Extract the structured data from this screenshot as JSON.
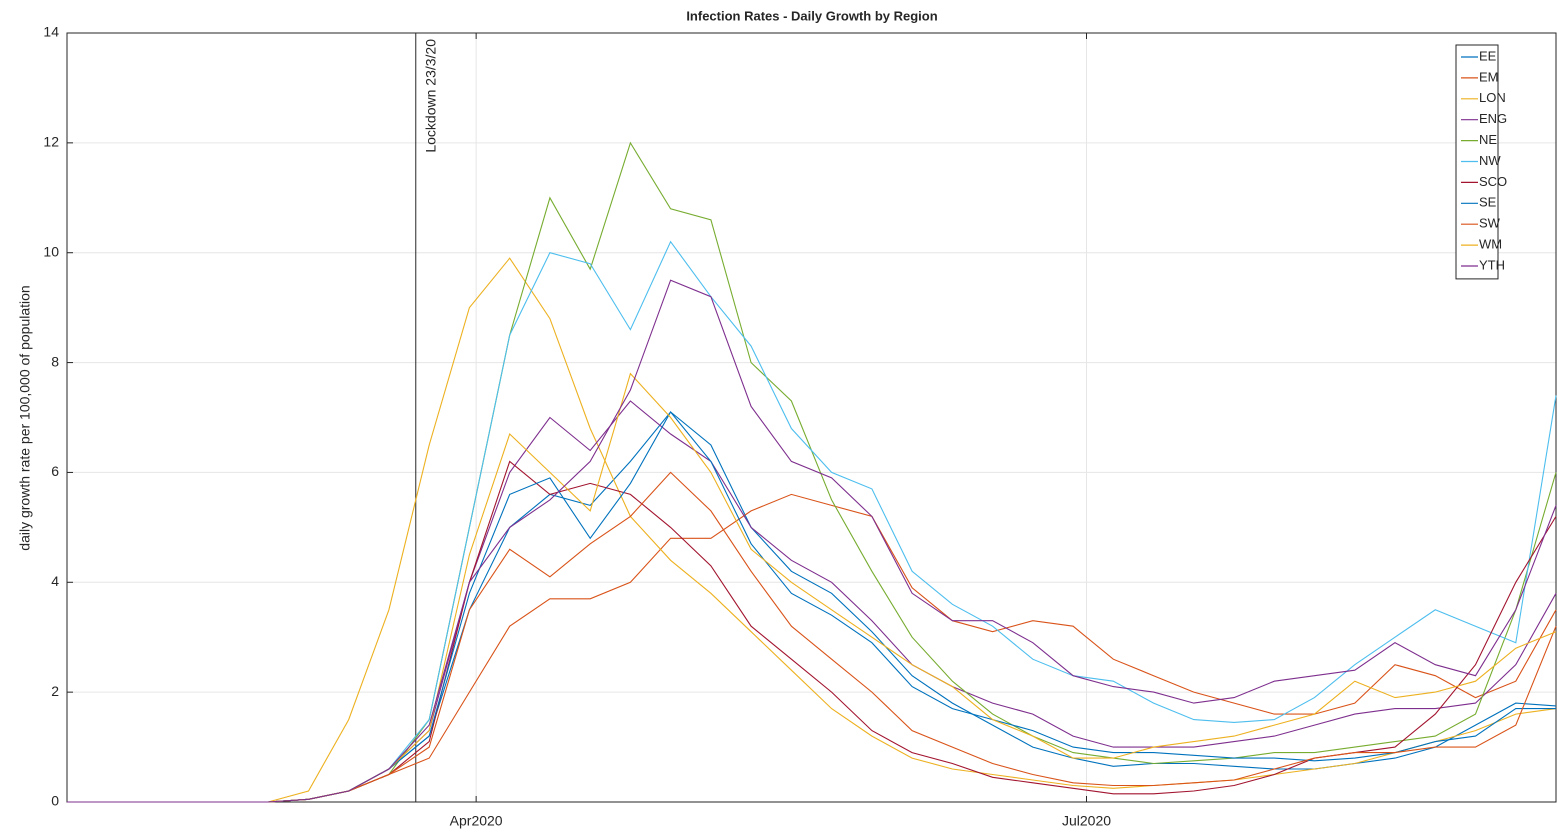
{
  "chart_data": {
    "type": "line",
    "title": "Infection Rates - Daily Growth by Region",
    "y_label": "daily growth rate per 100,000 of population",
    "x": [
      30,
      36,
      42,
      48,
      54,
      60,
      66,
      72,
      78,
      84,
      90,
      96,
      102,
      108,
      114,
      120,
      126,
      132,
      138,
      144,
      150,
      156,
      162,
      168,
      174,
      180,
      186,
      192,
      198,
      204,
      210,
      216,
      222,
      228,
      234,
      240,
      246,
      252
    ],
    "xlim": [
      30,
      252
    ],
    "xticks": [
      {
        "value": 91,
        "label": "Apr2020"
      },
      {
        "value": 182,
        "label": "Jul2020"
      }
    ],
    "ylim": [
      0,
      14
    ],
    "yticks": [
      0,
      2,
      4,
      6,
      8,
      10,
      12,
      14
    ],
    "grid": true,
    "legend": "northeast",
    "annotations": [
      {
        "text": "Lockdown 23/3/20",
        "x": 82
      }
    ],
    "series": [
      {
        "name": "EE",
        "color": "#0072BD",
        "values": [
          0,
          0,
          0,
          0,
          0,
          0,
          0.05,
          0.2,
          0.6,
          1.2,
          3.5,
          5,
          5.6,
          5.4,
          6.2,
          7.1,
          6.5,
          5,
          4.2,
          3.8,
          3.1,
          2.3,
          1.8,
          1.4,
          1.0,
          0.8,
          0.65,
          0.7,
          0.7,
          0.65,
          0.6,
          0.6,
          0.7,
          0.8,
          1.0,
          1.4,
          1.8,
          1.75
        ]
      },
      {
        "name": "EM",
        "color": "#D95319",
        "values": [
          0,
          0,
          0,
          0,
          0,
          0,
          0.05,
          0.2,
          0.5,
          0.8,
          2,
          3.2,
          3.7,
          3.7,
          4.0,
          4.8,
          4.8,
          5.3,
          5.6,
          5.4,
          5.2,
          3.9,
          3.3,
          3.1,
          3.3,
          3.2,
          2.6,
          2.3,
          2.0,
          1.8,
          1.6,
          1.6,
          1.8,
          2.5,
          2.3,
          1.9,
          2.2,
          3.5
        ]
      },
      {
        "name": "LON",
        "color": "#EDB120",
        "values": [
          0,
          0,
          0,
          0,
          0,
          0,
          0.2,
          1.5,
          3.5,
          6.5,
          9,
          9.9,
          8.8,
          6.8,
          5.2,
          4.4,
          3.8,
          3.1,
          2.4,
          1.7,
          1.2,
          0.8,
          0.6,
          0.5,
          0.4,
          0.3,
          0.25,
          0.3,
          0.35,
          0.4,
          0.5,
          0.6,
          0.7,
          0.9,
          1.1,
          1.3,
          1.6,
          1.7
        ]
      },
      {
        "name": "ENG",
        "color": "#7E2F8E",
        "values": [
          0,
          0,
          0,
          0,
          0,
          0,
          0.05,
          0.2,
          0.6,
          1.3,
          4,
          6,
          7,
          6.4,
          7.3,
          6.7,
          6.2,
          5,
          4.4,
          4,
          3.3,
          2.5,
          2.1,
          1.8,
          1.6,
          1.2,
          1.0,
          1.0,
          1.0,
          1.1,
          1.2,
          1.4,
          1.6,
          1.7,
          1.7,
          1.8,
          2.5,
          3.8
        ]
      },
      {
        "name": "NE",
        "color": "#77AC30",
        "values": [
          0,
          0,
          0,
          0,
          0,
          0,
          0.05,
          0.2,
          0.5,
          1.5,
          5,
          8.5,
          11,
          9.7,
          12,
          10.8,
          10.6,
          8,
          7.3,
          5.5,
          4.2,
          3,
          2.2,
          1.6,
          1.2,
          0.9,
          0.8,
          0.7,
          0.75,
          0.8,
          0.9,
          0.9,
          1.0,
          1.1,
          1.2,
          1.6,
          3.5,
          6
        ]
      },
      {
        "name": "NW",
        "color": "#4DBEEE",
        "values": [
          0,
          0,
          0,
          0,
          0,
          0,
          0.05,
          0.2,
          0.6,
          1.5,
          5,
          8.5,
          10,
          9.8,
          8.6,
          10.2,
          9.2,
          8.3,
          6.8,
          6,
          5.7,
          4.2,
          3.6,
          3.2,
          2.6,
          2.3,
          2.2,
          1.8,
          1.5,
          1.45,
          1.5,
          1.9,
          2.5,
          3,
          3.5,
          3.2,
          2.9,
          7.4
        ]
      },
      {
        "name": "SCO",
        "color": "#A2142F",
        "values": [
          0,
          0,
          0,
          0,
          0,
          0,
          0.05,
          0.2,
          0.5,
          1.1,
          4,
          6.2,
          5.6,
          5.8,
          5.6,
          5.0,
          4.3,
          3.2,
          2.6,
          2.0,
          1.3,
          0.9,
          0.7,
          0.45,
          0.35,
          0.25,
          0.15,
          0.15,
          0.2,
          0.3,
          0.5,
          0.8,
          0.9,
          1.0,
          1.6,
          2.5,
          4,
          5.2
        ]
      },
      {
        "name": "SE",
        "color": "#0072BD",
        "values": [
          0,
          0,
          0,
          0,
          0,
          0,
          0.05,
          0.2,
          0.6,
          1.2,
          3.8,
          5.6,
          5.9,
          4.8,
          5.8,
          7.1,
          6.2,
          4.7,
          3.8,
          3.4,
          2.9,
          2.1,
          1.7,
          1.5,
          1.3,
          1.0,
          0.9,
          0.9,
          0.85,
          0.8,
          0.8,
          0.75,
          0.8,
          0.9,
          1.1,
          1.2,
          1.7,
          1.7
        ]
      },
      {
        "name": "SW",
        "color": "#D95319",
        "values": [
          0,
          0,
          0,
          0,
          0,
          0,
          0.05,
          0.2,
          0.5,
          1.0,
          3.5,
          4.6,
          4.1,
          4.7,
          5.2,
          6,
          5.3,
          4.2,
          3.2,
          2.6,
          2.0,
          1.3,
          1.0,
          0.7,
          0.5,
          0.35,
          0.3,
          0.3,
          0.35,
          0.4,
          0.6,
          0.8,
          0.9,
          0.9,
          1.0,
          1.0,
          1.4,
          3.2
        ]
      },
      {
        "name": "WM",
        "color": "#EDB120",
        "values": [
          0,
          0,
          0,
          0,
          0,
          0,
          0.05,
          0.2,
          0.6,
          1.3,
          4.5,
          6.7,
          6,
          5.3,
          7.8,
          7.0,
          6.0,
          4.6,
          4.0,
          3.5,
          3.0,
          2.5,
          2.1,
          1.5,
          1.2,
          0.8,
          0.8,
          1.0,
          1.1,
          1.2,
          1.4,
          1.6,
          2.2,
          1.9,
          2.0,
          2.2,
          2.8,
          3.1
        ]
      },
      {
        "name": "YTH",
        "color": "#7E2F8E",
        "values": [
          0,
          0,
          0,
          0,
          0,
          0,
          0.05,
          0.2,
          0.6,
          1.4,
          4,
          5,
          5.5,
          6.2,
          7.5,
          9.5,
          9.2,
          7.2,
          6.2,
          5.9,
          5.2,
          3.8,
          3.3,
          3.3,
          2.9,
          2.3,
          2.1,
          2,
          1.8,
          1.9,
          2.2,
          2.3,
          2.4,
          2.9,
          2.5,
          2.3,
          3.5,
          5.4
        ]
      }
    ]
  }
}
